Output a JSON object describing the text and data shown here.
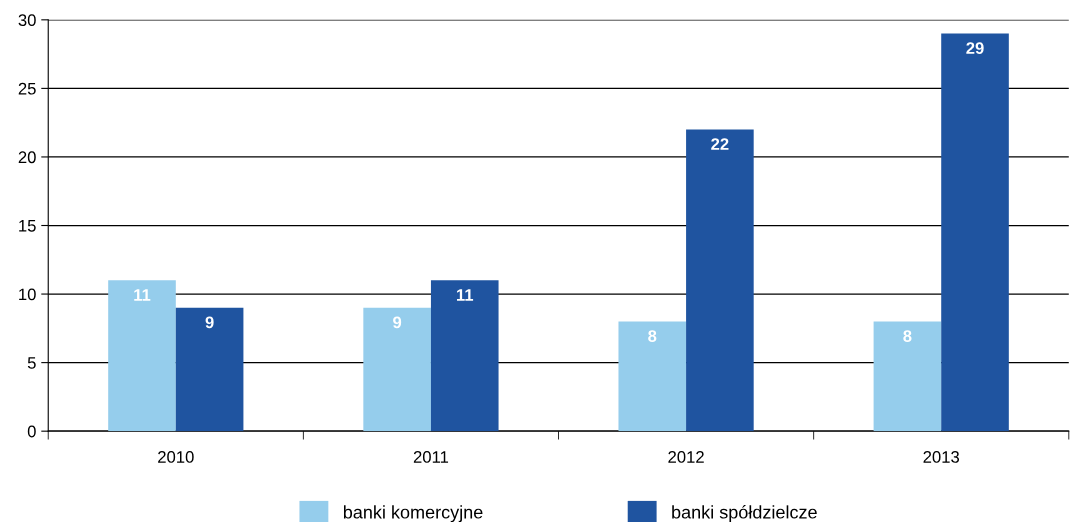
{
  "chart_data": {
    "type": "bar",
    "categories": [
      "2010",
      "2011",
      "2012",
      "2013"
    ],
    "series": [
      {
        "name": "banki komercyjne",
        "color": "#95cdec",
        "values": [
          11,
          9,
          8,
          8
        ]
      },
      {
        "name": "banki spółdzielcze",
        "color": "#1f54a0",
        "values": [
          9,
          11,
          22,
          29
        ]
      }
    ],
    "ylim": [
      0,
      30
    ],
    "yticks": [
      0,
      5,
      10,
      15,
      20,
      25,
      30
    ],
    "grid": "y",
    "legend": "bottom",
    "data_labels": true
  }
}
